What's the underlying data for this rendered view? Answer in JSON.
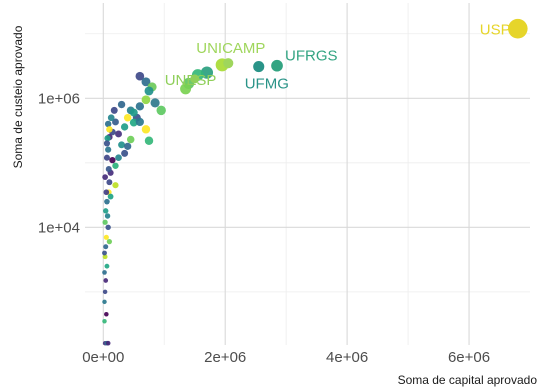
{
  "chart_data": {
    "type": "scatter",
    "xlabel": "Soma de capital aprovado",
    "ylabel": "Soma de custeio aprovado",
    "x_scale": "linear",
    "y_scale": "log10",
    "xlim": [
      -300000,
      7000000
    ],
    "ylim": [
      150,
      30000000
    ],
    "x_ticks": [
      {
        "value": 0,
        "label": "0e+00"
      },
      {
        "value": 2000000,
        "label": "2e+06"
      },
      {
        "value": 4000000,
        "label": "4e+06"
      },
      {
        "value": 6000000,
        "label": "6e+06"
      }
    ],
    "y_ticks": [
      {
        "value": 10000,
        "label": "1e+04"
      },
      {
        "value": 1000000,
        "label": "1e+06"
      }
    ],
    "grid": true,
    "legend": "none",
    "labeled_points": [
      {
        "label": "USP",
        "x": 6800000,
        "y": 12000000,
        "color": "#e6d52a"
      },
      {
        "label": "UNICAMP",
        "x": 2050000,
        "y": 3500000,
        "color": "#9fd65c"
      },
      {
        "label": "UFRGS",
        "x": 2850000,
        "y": 3200000,
        "color": "#33a482"
      },
      {
        "label": "UFMG",
        "x": 2550000,
        "y": 3100000,
        "color": "#2a9488"
      },
      {
        "label": "UNESP",
        "x": 1500000,
        "y": 2000000,
        "color": "#8fcf5a"
      }
    ],
    "points": [
      {
        "x": 600000,
        "y": 2200000,
        "c": "#3f4a8a"
      },
      {
        "x": 700000,
        "y": 1800000,
        "c": "#2e6e8e"
      },
      {
        "x": 800000,
        "y": 1500000,
        "c": "#6cc95a"
      },
      {
        "x": 750000,
        "y": 1300000,
        "c": "#21918c"
      },
      {
        "x": 1700000,
        "y": 2500000,
        "c": "#2aa07f"
      },
      {
        "x": 1400000,
        "y": 1700000,
        "c": "#5ec462"
      },
      {
        "x": 1350000,
        "y": 1400000,
        "c": "#7ad151"
      },
      {
        "x": 1550000,
        "y": 2300000,
        "c": "#35b779"
      },
      {
        "x": 1950000,
        "y": 3300000,
        "c": "#a8db34"
      },
      {
        "x": 850000,
        "y": 850000,
        "c": "#2f7a8d"
      },
      {
        "x": 950000,
        "y": 650000,
        "c": "#5ec962"
      },
      {
        "x": 700000,
        "y": 950000,
        "c": "#90d743"
      },
      {
        "x": 600000,
        "y": 750000,
        "c": "#2c728e"
      },
      {
        "x": 550000,
        "y": 500000,
        "c": "#3b528b"
      },
      {
        "x": 500000,
        "y": 420000,
        "c": "#22a884"
      },
      {
        "x": 450000,
        "y": 650000,
        "c": "#27808e"
      },
      {
        "x": 400000,
        "y": 500000,
        "c": "#fde725"
      },
      {
        "x": 350000,
        "y": 360000,
        "c": "#1f9e89"
      },
      {
        "x": 300000,
        "y": 800000,
        "c": "#31688e"
      },
      {
        "x": 250000,
        "y": 280000,
        "c": "#46327e"
      },
      {
        "x": 200000,
        "y": 430000,
        "c": "#365c8d"
      },
      {
        "x": 150000,
        "y": 300000,
        "c": "#3e4a89"
      },
      {
        "x": 100000,
        "y": 250000,
        "c": "#482878"
      },
      {
        "x": 80000,
        "y": 160000,
        "c": "#2b758e"
      },
      {
        "x": 700000,
        "y": 330000,
        "c": "#fde725"
      },
      {
        "x": 750000,
        "y": 220000,
        "c": "#35b779"
      },
      {
        "x": 600000,
        "y": 430000,
        "c": "#2a788e"
      },
      {
        "x": 500000,
        "y": 600000,
        "c": "#1f9a8a"
      },
      {
        "x": 450000,
        "y": 230000,
        "c": "#6ece58"
      },
      {
        "x": 300000,
        "y": 190000,
        "c": "#21918c"
      },
      {
        "x": 400000,
        "y": 180000,
        "c": "#31688e"
      },
      {
        "x": 350000,
        "y": 140000,
        "c": "#3b528b"
      },
      {
        "x": 250000,
        "y": 120000,
        "c": "#25858e"
      },
      {
        "x": 200000,
        "y": 90000,
        "c": "#2db27d"
      },
      {
        "x": 150000,
        "y": 110000,
        "c": "#440154"
      },
      {
        "x": 120000,
        "y": 70000,
        "c": "#472f7d"
      },
      {
        "x": 100000,
        "y": 50000,
        "c": "#3e4989"
      },
      {
        "x": 90000,
        "y": 35000,
        "c": "#fde725"
      },
      {
        "x": 200000,
        "y": 45000,
        "c": "#bddf26"
      },
      {
        "x": 50000,
        "y": 35000,
        "c": "#433e85"
      },
      {
        "x": 60000,
        "y": 25000,
        "c": "#2d708e"
      },
      {
        "x": 40000,
        "y": 18000,
        "c": "#1f9e89"
      },
      {
        "x": 30000,
        "y": 12000,
        "c": "#5ec962"
      },
      {
        "x": 80000,
        "y": 10000,
        "c": "#3b528b"
      },
      {
        "x": 50000,
        "y": 7000,
        "c": "#fde725"
      },
      {
        "x": 40000,
        "y": 5000,
        "c": "#31688e"
      },
      {
        "x": 30000,
        "y": 3500,
        "c": "#bddf26"
      },
      {
        "x": 60000,
        "y": 2500,
        "c": "#22a884"
      },
      {
        "x": 40000,
        "y": 1500,
        "c": "#482878"
      },
      {
        "x": 30000,
        "y": 1000,
        "c": "#3e4a89"
      },
      {
        "x": 20000,
        "y": 700,
        "c": "#2a788e"
      },
      {
        "x": 50000,
        "y": 450,
        "c": "#440154"
      },
      {
        "x": 20000,
        "y": 350,
        "c": "#35b779"
      },
      {
        "x": 30000,
        "y": 160,
        "c": "#453781"
      },
      {
        "x": 60000,
        "y": 160,
        "c": "#2c728e"
      },
      {
        "x": 80000,
        "y": 160,
        "c": "#482878"
      },
      {
        "x": 130000,
        "y": 500000,
        "c": "#25858e"
      },
      {
        "x": 180000,
        "y": 650000,
        "c": "#3e4989"
      },
      {
        "x": 80000,
        "y": 400000,
        "c": "#2d708e"
      },
      {
        "x": 100000,
        "y": 330000,
        "c": "#fde725"
      },
      {
        "x": 70000,
        "y": 240000,
        "c": "#1f9e89"
      },
      {
        "x": 60000,
        "y": 200000,
        "c": "#3b528b"
      },
      {
        "x": 60000,
        "y": 120000,
        "c": "#3f4788"
      },
      {
        "x": 90000,
        "y": 80000,
        "c": "#38588c"
      },
      {
        "x": 30000,
        "y": 60000,
        "c": "#472d7b"
      },
      {
        "x": 120000,
        "y": 30000,
        "c": "#20a386"
      },
      {
        "x": 70000,
        "y": 15000,
        "c": "#26828e"
      },
      {
        "x": 100000,
        "y": 6000,
        "c": "#6ece58"
      },
      {
        "x": 20000,
        "y": 4000,
        "c": "#3b528b"
      },
      {
        "x": 20000,
        "y": 2000,
        "c": "#2e6f8e"
      }
    ]
  }
}
